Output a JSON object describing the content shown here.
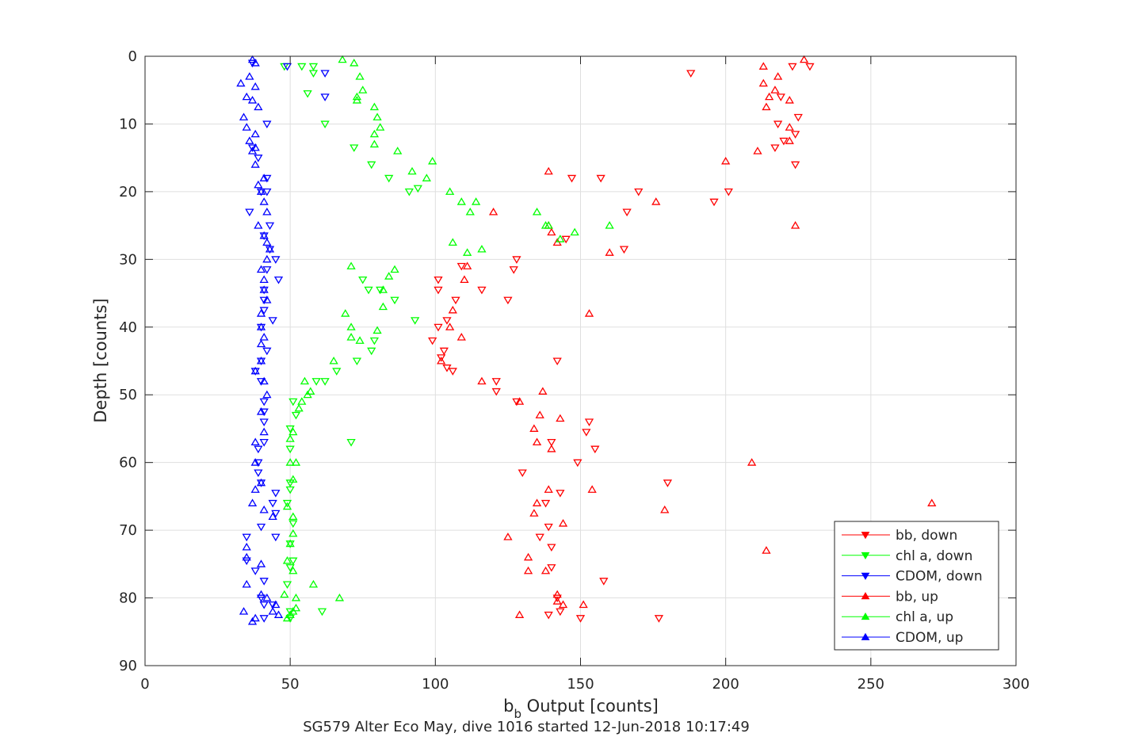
{
  "chart_data": {
    "type": "scatter",
    "xlabel_main": "b",
    "xlabel_sub": "b",
    "xlabel_rest": " Output [counts]",
    "ylabel": "Depth [counts]",
    "caption": "SG579 Alter Eco May, dive 1016 started 12-Jun-2018 10:17:49",
    "xlim": [
      0,
      300
    ],
    "ylim": [
      0,
      90
    ],
    "y_reversed": true,
    "grid": true,
    "x_ticks": [
      0,
      50,
      100,
      150,
      200,
      250,
      300
    ],
    "y_ticks": [
      0,
      10,
      20,
      30,
      40,
      50,
      60,
      70,
      80,
      90
    ],
    "legend_position": "bottom-right",
    "series": [
      {
        "name": "bb, down",
        "color": "#ff0000",
        "marker": "triangle-down",
        "points": [
          [
            188,
            2.5
          ],
          [
            157,
            18
          ],
          [
            147,
            18
          ],
          [
            170,
            20
          ],
          [
            201,
            20
          ],
          [
            196,
            21.5
          ],
          [
            166,
            23
          ],
          [
            165,
            28.5
          ],
          [
            145,
            27
          ],
          [
            128,
            30
          ],
          [
            127,
            31.5
          ],
          [
            109,
            31
          ],
          [
            116,
            34.5
          ],
          [
            101,
            33
          ],
          [
            107,
            36
          ],
          [
            101,
            34.5
          ],
          [
            125,
            36
          ],
          [
            104,
            39
          ],
          [
            99,
            42
          ],
          [
            101,
            40
          ],
          [
            103,
            43.5
          ],
          [
            142,
            45
          ],
          [
            106,
            46.5
          ],
          [
            104,
            46
          ],
          [
            102,
            44.5
          ],
          [
            121,
            48
          ],
          [
            121,
            49.5
          ],
          [
            128,
            51
          ],
          [
            153,
            54
          ],
          [
            152,
            55.5
          ],
          [
            155,
            58
          ],
          [
            140,
            57
          ],
          [
            149,
            60
          ],
          [
            130,
            61.5
          ],
          [
            180,
            63
          ],
          [
            143,
            64.5
          ],
          [
            138,
            66
          ],
          [
            139,
            69.5
          ],
          [
            136,
            71
          ],
          [
            140,
            72.5
          ],
          [
            140,
            75.5
          ],
          [
            158,
            77.5
          ],
          [
            142,
            80
          ],
          [
            143,
            82
          ],
          [
            139,
            82.5
          ],
          [
            150,
            83
          ],
          [
            177,
            83
          ],
          [
            223,
            1.5
          ],
          [
            229,
            1.5
          ],
          [
            219,
            6
          ],
          [
            225,
            9
          ],
          [
            218,
            10
          ],
          [
            224,
            11.5
          ],
          [
            220,
            12.5
          ],
          [
            217,
            13.5
          ],
          [
            224,
            16
          ]
        ]
      },
      {
        "name": "chl a, down",
        "color": "#00ff00",
        "marker": "triangle-down",
        "points": [
          [
            48,
            1.5
          ],
          [
            54,
            1.5
          ],
          [
            58,
            1.5
          ],
          [
            58,
            2.5
          ],
          [
            56,
            5.5
          ],
          [
            62,
            10
          ],
          [
            72,
            13.5
          ],
          [
            78,
            16
          ],
          [
            84,
            18
          ],
          [
            91,
            20
          ],
          [
            94,
            19.5
          ],
          [
            86,
            36
          ],
          [
            77,
            34.5
          ],
          [
            81,
            34.5
          ],
          [
            75,
            33
          ],
          [
            93,
            39
          ],
          [
            79,
            42
          ],
          [
            78,
            43.5
          ],
          [
            73,
            45
          ],
          [
            66,
            46.5
          ],
          [
            59,
            48
          ],
          [
            62,
            48
          ],
          [
            51,
            51
          ],
          [
            52,
            53
          ],
          [
            50,
            55
          ],
          [
            50,
            58
          ],
          [
            50,
            63
          ],
          [
            50,
            64
          ],
          [
            49,
            66
          ],
          [
            51,
            69
          ],
          [
            50,
            72
          ],
          [
            51,
            74.5
          ],
          [
            50,
            75.5
          ],
          [
            49,
            78
          ],
          [
            71,
            57
          ],
          [
            61,
            82
          ],
          [
            50,
            82
          ],
          [
            50,
            83
          ]
        ]
      },
      {
        "name": "CDOM, down",
        "color": "#0000ff",
        "marker": "triangle-down",
        "points": [
          [
            49,
            1.5
          ],
          [
            37,
            1
          ],
          [
            62,
            2.5
          ],
          [
            62,
            6
          ],
          [
            42,
            10
          ],
          [
            37,
            13.5
          ],
          [
            39,
            15
          ],
          [
            42,
            18
          ],
          [
            40,
            20
          ],
          [
            42,
            20
          ],
          [
            36,
            23
          ],
          [
            43,
            25
          ],
          [
            41,
            26.5
          ],
          [
            43,
            28.5
          ],
          [
            45,
            30
          ],
          [
            42,
            31.5
          ],
          [
            46,
            33
          ],
          [
            41,
            34.5
          ],
          [
            41,
            36
          ],
          [
            41,
            37.5
          ],
          [
            44,
            39
          ],
          [
            40,
            40
          ],
          [
            42,
            43.5
          ],
          [
            40,
            45
          ],
          [
            38,
            46.5
          ],
          [
            40,
            48
          ],
          [
            41,
            51
          ],
          [
            41,
            52.5
          ],
          [
            41,
            54
          ],
          [
            41,
            57
          ],
          [
            39,
            58
          ],
          [
            39,
            60
          ],
          [
            39,
            61.5
          ],
          [
            40,
            63
          ],
          [
            45,
            64.5
          ],
          [
            44,
            66
          ],
          [
            45,
            67.5
          ],
          [
            40,
            69.5
          ],
          [
            45,
            71
          ],
          [
            35,
            71
          ],
          [
            35,
            74.5
          ],
          [
            38,
            76
          ],
          [
            41,
            77.5
          ],
          [
            40,
            80
          ],
          [
            44,
            81
          ],
          [
            41,
            81
          ],
          [
            41,
            83
          ]
        ]
      },
      {
        "name": "bb, up",
        "color": "#ff0000",
        "marker": "triangle-up",
        "points": [
          [
            227,
            0.5
          ],
          [
            213,
            1.5
          ],
          [
            213,
            4
          ],
          [
            218,
            3
          ],
          [
            217,
            5
          ],
          [
            215,
            6
          ],
          [
            222,
            6.5
          ],
          [
            214,
            7.5
          ],
          [
            222,
            10.5
          ],
          [
            222,
            12.5
          ],
          [
            211,
            14
          ],
          [
            200,
            15.5
          ],
          [
            139,
            17
          ],
          [
            176,
            21.5
          ],
          [
            120,
            23
          ],
          [
            139,
            25
          ],
          [
            140,
            26
          ],
          [
            142,
            27.5
          ],
          [
            224,
            25
          ],
          [
            160,
            29
          ],
          [
            111,
            31
          ],
          [
            110,
            33
          ],
          [
            106,
            37.5
          ],
          [
            105,
            40
          ],
          [
            109,
            41.5
          ],
          [
            102,
            45
          ],
          [
            116,
            48
          ],
          [
            137,
            49.5
          ],
          [
            129,
            51
          ],
          [
            136,
            53
          ],
          [
            143,
            53.5
          ],
          [
            134,
            55
          ],
          [
            135,
            57
          ],
          [
            140,
            58
          ],
          [
            209,
            60
          ],
          [
            139,
            64
          ],
          [
            135,
            66
          ],
          [
            179,
            67
          ],
          [
            134,
            67.5
          ],
          [
            144,
            69
          ],
          [
            125,
            71
          ],
          [
            132,
            74
          ],
          [
            132,
            76
          ],
          [
            138,
            76
          ],
          [
            154,
            64
          ],
          [
            153,
            38
          ],
          [
            271,
            66
          ],
          [
            214,
            73
          ],
          [
            142,
            79.5
          ],
          [
            151,
            81
          ],
          [
            129,
            82.5
          ],
          [
            144,
            81
          ],
          [
            142,
            80.5
          ]
        ]
      },
      {
        "name": "chl a, up",
        "color": "#00ff00",
        "marker": "triangle-up",
        "points": [
          [
            68,
            0.5
          ],
          [
            72,
            1
          ],
          [
            74,
            3
          ],
          [
            75,
            5
          ],
          [
            73,
            6
          ],
          [
            73,
            6.5
          ],
          [
            79,
            7.5
          ],
          [
            80,
            9
          ],
          [
            81,
            10.5
          ],
          [
            79,
            11.5
          ],
          [
            79,
            13
          ],
          [
            87,
            14
          ],
          [
            99,
            15.5
          ],
          [
            92,
            17
          ],
          [
            97,
            18
          ],
          [
            105,
            20
          ],
          [
            109,
            21.5
          ],
          [
            114,
            21.5
          ],
          [
            112,
            23
          ],
          [
            135,
            23
          ],
          [
            138,
            25
          ],
          [
            139,
            25
          ],
          [
            148,
            26
          ],
          [
            143,
            27
          ],
          [
            160,
            25
          ],
          [
            116,
            28.5
          ],
          [
            111,
            29
          ],
          [
            106,
            27.5
          ],
          [
            71,
            31
          ],
          [
            84,
            32.5
          ],
          [
            86,
            31.5
          ],
          [
            82,
            34.5
          ],
          [
            82,
            37
          ],
          [
            69,
            38
          ],
          [
            71,
            40
          ],
          [
            80,
            40.5
          ],
          [
            71,
            41.5
          ],
          [
            74,
            42
          ],
          [
            65,
            45
          ],
          [
            55,
            48
          ],
          [
            56,
            50
          ],
          [
            57,
            49.5
          ],
          [
            54,
            51
          ],
          [
            53,
            52
          ],
          [
            51,
            55.5
          ],
          [
            50,
            56.5
          ],
          [
            50,
            60
          ],
          [
            52,
            60
          ],
          [
            51,
            62.5
          ],
          [
            49,
            66.5
          ],
          [
            51,
            68
          ],
          [
            51,
            70.5
          ],
          [
            50,
            72
          ],
          [
            49,
            74.5
          ],
          [
            51,
            76
          ],
          [
            58,
            78
          ],
          [
            52,
            80
          ],
          [
            67,
            80
          ],
          [
            48,
            79.5
          ],
          [
            52,
            81.5
          ],
          [
            51,
            82
          ],
          [
            49,
            83
          ],
          [
            50,
            82.5
          ]
        ]
      },
      {
        "name": "CDOM, up",
        "color": "#0000ff",
        "marker": "triangle-up",
        "points": [
          [
            37,
            0.5
          ],
          [
            38,
            1
          ],
          [
            36,
            3
          ],
          [
            33,
            4
          ],
          [
            38,
            4.5
          ],
          [
            35,
            6
          ],
          [
            37,
            6.5
          ],
          [
            39,
            7.5
          ],
          [
            34,
            9
          ],
          [
            35,
            10.5
          ],
          [
            38,
            11.5
          ],
          [
            36,
            12.5
          ],
          [
            38,
            13.5
          ],
          [
            37,
            14
          ],
          [
            38,
            16
          ],
          [
            41,
            18
          ],
          [
            39,
            19
          ],
          [
            40,
            20
          ],
          [
            41,
            21.5
          ],
          [
            42,
            23
          ],
          [
            39,
            25
          ],
          [
            41,
            26.5
          ],
          [
            42,
            27.5
          ],
          [
            43,
            28.5
          ],
          [
            42,
            30
          ],
          [
            40,
            31.5
          ],
          [
            41,
            33
          ],
          [
            41,
            34.5
          ],
          [
            42,
            36
          ],
          [
            40,
            38
          ],
          [
            40,
            40
          ],
          [
            41,
            41.5
          ],
          [
            40,
            42.5
          ],
          [
            40,
            45
          ],
          [
            38,
            46.5
          ],
          [
            41,
            48
          ],
          [
            42,
            50
          ],
          [
            40,
            52.5
          ],
          [
            41,
            55.5
          ],
          [
            38,
            57
          ],
          [
            38,
            60
          ],
          [
            40,
            63
          ],
          [
            38,
            64
          ],
          [
            37,
            66
          ],
          [
            41,
            67
          ],
          [
            44,
            68
          ],
          [
            35,
            72.5
          ],
          [
            35,
            74
          ],
          [
            40,
            75
          ],
          [
            35,
            78
          ],
          [
            40,
            79.5
          ],
          [
            42,
            80
          ],
          [
            45,
            81
          ],
          [
            44,
            82
          ],
          [
            46,
            82.5
          ],
          [
            38,
            83
          ],
          [
            37,
            83.5
          ],
          [
            34,
            82
          ]
        ]
      }
    ]
  }
}
